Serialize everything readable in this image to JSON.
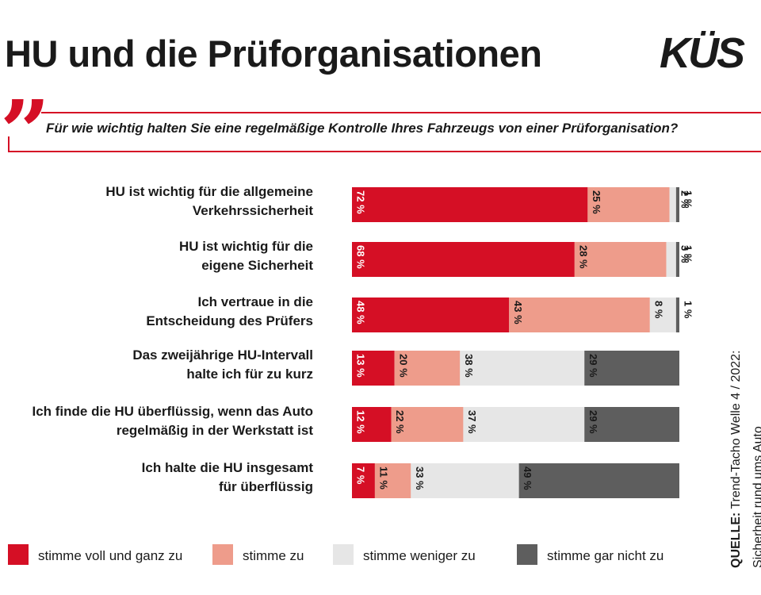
{
  "title": "HU und die Prüforganisationen",
  "logo": "KÜS",
  "question": "Für wie wichtig halten Sie eine regelmäßige Kontrolle Ihres Fahrzeugs von einer Prüforganisation?",
  "source_label": "QUELLE:",
  "source_text": "Trend-Tacho Welle 4 / 2022:",
  "source_text_2": "Sicherheit rund ums Auto",
  "colors": {
    "accent": "#d50f25",
    "stimme_voll": "#d50f25",
    "stimme_zu": "#ee9c8b",
    "stimme_weniger": "#e6e6e6",
    "stimme_gar_nicht": "#5e5e5e"
  },
  "chart_data": {
    "type": "bar",
    "orientation": "horizontal",
    "stacked": true,
    "value_unit": "%",
    "xlim": [
      0,
      100
    ],
    "categories": [
      [
        "HU ist wichtig für die allgemeine",
        "Verkehrssicherheit"
      ],
      [
        "HU ist wichtig für die",
        "eigene Sicherheit"
      ],
      [
        "Ich vertraue in die",
        "Entscheidung des Prüfers"
      ],
      [
        "Das zweijährige HU-Intervall",
        "halte ich für zu kurz"
      ],
      [
        "Ich finde die HU überflüssig, wenn das Auto",
        "regelmäßig in der Werkstatt ist"
      ],
      [
        "Ich halte die HU insgesamt",
        "für überflüssig"
      ]
    ],
    "series": [
      {
        "name": "stimme voll und ganz zu",
        "color": "#d50f25",
        "values": [
          72,
          68,
          48,
          13,
          12,
          7
        ]
      },
      {
        "name": "stimme zu",
        "color": "#ee9c8b",
        "values": [
          25,
          28,
          43,
          20,
          22,
          11
        ]
      },
      {
        "name": "stimme weniger zu",
        "color": "#e6e6e6",
        "values": [
          2,
          3,
          8,
          38,
          37,
          33
        ]
      },
      {
        "name": "stimme gar nicht zu",
        "color": "#5e5e5e",
        "values": [
          1,
          1,
          1,
          29,
          29,
          49
        ]
      }
    ],
    "legend_position": "bottom"
  }
}
